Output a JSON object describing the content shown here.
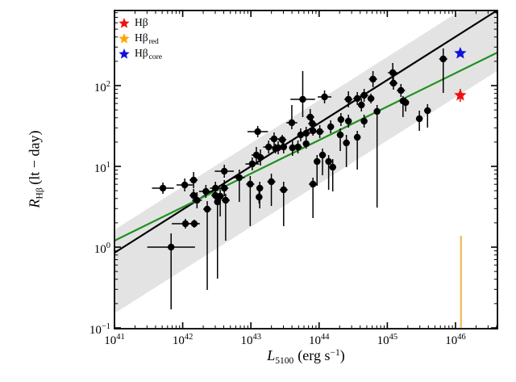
{
  "figure": {
    "background": "#ffffff"
  },
  "axes": {
    "tick_base": "10",
    "xlabel": {
      "var": "L",
      "sub": "5100",
      "unit_pre": "(erg s",
      "unit_sup": "−1",
      "unit_post": ")"
    },
    "ylabel": {
      "var": "R",
      "sub": "Hβ",
      "unit": " (lt − day)"
    },
    "xtick_exponents": [
      41,
      42,
      43,
      44,
      45,
      46
    ],
    "ytick_exponents": [
      2,
      1,
      0,
      -1
    ]
  },
  "legend": {
    "items": [
      {
        "main": "Hβ",
        "sub": "",
        "color": "#ee1111"
      },
      {
        "main": "Hβ",
        "sub": "red",
        "color": "#ffa500"
      },
      {
        "main": "Hβ",
        "sub": "core",
        "color": "#1111dd"
      }
    ]
  },
  "chart_data": {
    "type": "scatter",
    "title": "",
    "xlabel": "L_5100 (erg s^-1)",
    "ylabel": "R_Hbeta (lt - day)",
    "xscale": "log",
    "yscale": "log",
    "xlim_log": [
      41,
      46.615
    ],
    "ylim_log": [
      -1.01,
      2.93
    ],
    "grid": false,
    "legend_position": "upper left",
    "points_color": "#000000",
    "points_note": "each point: [logL5100, logR, xerr_dex, yerr_up_dex, yerr_down_dex]",
    "points_log": [
      [
        41.71,
        0.73,
        0.16,
        0.07,
        0.07
      ],
      [
        41.83,
        0.0,
        0.35,
        0.17,
        0.77
      ],
      [
        42.03,
        0.77,
        0.12,
        0.08,
        0.08
      ],
      [
        42.04,
        0.29,
        0.2,
        0.06,
        0.06
      ],
      [
        42.16,
        0.83,
        0.06,
        0.1,
        0.1
      ],
      [
        42.16,
        0.64,
        0.06,
        0.08,
        0.08
      ],
      [
        42.17,
        0.29,
        0.08,
        0.05,
        0.05
      ],
      [
        42.21,
        0.58,
        0.07,
        0.1,
        0.1
      ],
      [
        42.34,
        0.69,
        0.1,
        0.08,
        0.08
      ],
      [
        42.36,
        0.47,
        0.06,
        0.1,
        1.0
      ],
      [
        42.48,
        0.73,
        0.08,
        0.08,
        0.08
      ],
      [
        42.48,
        0.64,
        0.06,
        0.06,
        0.06
      ],
      [
        42.51,
        0.56,
        0.05,
        0.1,
        0.95
      ],
      [
        42.61,
        0.94,
        0.14,
        0.08,
        0.08
      ],
      [
        42.61,
        0.73,
        0.06,
        0.1,
        0.1
      ],
      [
        42.55,
        0.63,
        0.05,
        0.08,
        0.25
      ],
      [
        42.63,
        0.58,
        0.06,
        0.08,
        0.5
      ],
      [
        42.83,
        0.86,
        0.08,
        0.1,
        0.3
      ],
      [
        42.99,
        0.78,
        0.06,
        0.1,
        0.52
      ],
      [
        43.02,
        1.03,
        0.1,
        0.08,
        0.08
      ],
      [
        43.08,
        1.14,
        0.07,
        0.1,
        0.1
      ],
      [
        43.1,
        1.43,
        0.15,
        0.07,
        0.07
      ],
      [
        43.13,
        0.73,
        0.05,
        0.08,
        0.25
      ],
      [
        43.12,
        0.62,
        0.05,
        0.08,
        0.08
      ],
      [
        43.14,
        1.11,
        0.06,
        0.1,
        0.1
      ],
      [
        43.26,
        1.24,
        0.08,
        0.08,
        0.08
      ],
      [
        43.3,
        0.81,
        0.06,
        0.1,
        0.3
      ],
      [
        43.34,
        1.34,
        0.07,
        0.08,
        0.08
      ],
      [
        43.36,
        1.22,
        0.05,
        0.06,
        0.06
      ],
      [
        43.4,
        1.23,
        0.06,
        0.08,
        0.08
      ],
      [
        43.46,
        1.33,
        0.06,
        0.06,
        0.06
      ],
      [
        43.48,
        1.24,
        0.05,
        0.08,
        0.08
      ],
      [
        43.48,
        0.71,
        0.06,
        0.1,
        0.45
      ],
      [
        43.6,
        1.54,
        0.08,
        0.22,
        0.08
      ],
      [
        43.61,
        1.23,
        0.05,
        0.1,
        0.1
      ],
      [
        43.69,
        1.24,
        0.06,
        0.08,
        0.08
      ],
      [
        43.73,
        1.39,
        0.05,
        0.08,
        0.08
      ],
      [
        43.76,
        1.83,
        0.18,
        0.35,
        0.22
      ],
      [
        43.81,
        1.41,
        0.06,
        0.08,
        0.08
      ],
      [
        43.81,
        1.28,
        0.05,
        0.06,
        0.06
      ],
      [
        43.87,
        1.61,
        0.06,
        0.1,
        0.1
      ],
      [
        43.9,
        1.53,
        0.06,
        0.08,
        0.08
      ],
      [
        43.91,
        1.44,
        0.05,
        0.06,
        0.06
      ],
      [
        43.91,
        0.78,
        0.06,
        0.08,
        0.42
      ],
      [
        43.97,
        1.06,
        0.05,
        0.08,
        0.3
      ],
      [
        44.01,
        1.43,
        0.06,
        0.08,
        0.08
      ],
      [
        44.05,
        1.14,
        0.05,
        0.08,
        0.25
      ],
      [
        44.08,
        1.86,
        0.1,
        0.08,
        0.08
      ],
      [
        44.14,
        1.06,
        0.05,
        0.08,
        0.35
      ],
      [
        44.17,
        1.49,
        0.05,
        0.08,
        0.08
      ],
      [
        44.2,
        0.99,
        0.05,
        0.1,
        0.3
      ],
      [
        44.31,
        1.39,
        0.05,
        0.08,
        0.2
      ],
      [
        44.32,
        1.58,
        0.05,
        0.08,
        0.08
      ],
      [
        44.4,
        1.29,
        0.05,
        0.1,
        0.3
      ],
      [
        44.43,
        1.83,
        0.06,
        0.1,
        0.1
      ],
      [
        44.43,
        1.56,
        0.05,
        0.08,
        0.08
      ],
      [
        44.56,
        1.84,
        0.06,
        0.08,
        0.08
      ],
      [
        44.56,
        1.36,
        0.05,
        0.08,
        0.4
      ],
      [
        44.62,
        1.76,
        0.05,
        0.08,
        0.08
      ],
      [
        44.66,
        1.88,
        0.06,
        0.08,
        0.08
      ],
      [
        44.66,
        1.56,
        0.05,
        0.08,
        0.08
      ],
      [
        44.76,
        1.84,
        0.05,
        0.06,
        0.06
      ],
      [
        44.79,
        2.08,
        0.06,
        0.1,
        0.1
      ],
      [
        44.85,
        1.68,
        0.05,
        0.08,
        1.19
      ],
      [
        45.08,
        2.16,
        0.07,
        0.12,
        0.12
      ],
      [
        45.09,
        2.03,
        0.06,
        0.08,
        0.08
      ],
      [
        45.2,
        1.94,
        0.06,
        0.08,
        0.08
      ],
      [
        45.23,
        1.81,
        0.05,
        0.06,
        0.2
      ],
      [
        45.27,
        1.79,
        0.05,
        0.06,
        0.11
      ],
      [
        45.47,
        1.59,
        0.05,
        0.1,
        0.15
      ],
      [
        45.59,
        1.69,
        0.05,
        0.08,
        0.21
      ],
      [
        45.82,
        2.33,
        0.06,
        0.13,
        0.42
      ]
    ],
    "fit_lines": [
      {
        "name": "best-fit",
        "color": "#000000",
        "x0_log": 41,
        "y0_log": -0.07,
        "slope": 0.535
      },
      {
        "name": "comparison-fit",
        "color": "#209020",
        "x0_log": 41,
        "y0_log": 0.08,
        "slope": 0.415
      }
    ],
    "scatter_band": {
      "color": "#e3e3e3",
      "slope": 0.535,
      "upper_y0_log": 0.215,
      "lower_y0_log": -0.82
    },
    "highlight_points": [
      {
        "name": "Hbeta",
        "marker": "star",
        "color": "#ee1111",
        "x_log": 46.07,
        "y_log": 1.88,
        "yerr_log": 0.08
      },
      {
        "name": "Hbeta_red",
        "marker": "errorbar-only",
        "color": "#f2bb66",
        "x_log": 46.08,
        "y_top_log": 0.14,
        "y_bottom_log": -1.01
      },
      {
        "name": "Hbeta_core",
        "marker": "star",
        "color": "#1111dd",
        "x_log": 46.07,
        "y_log": 2.4
      }
    ]
  }
}
